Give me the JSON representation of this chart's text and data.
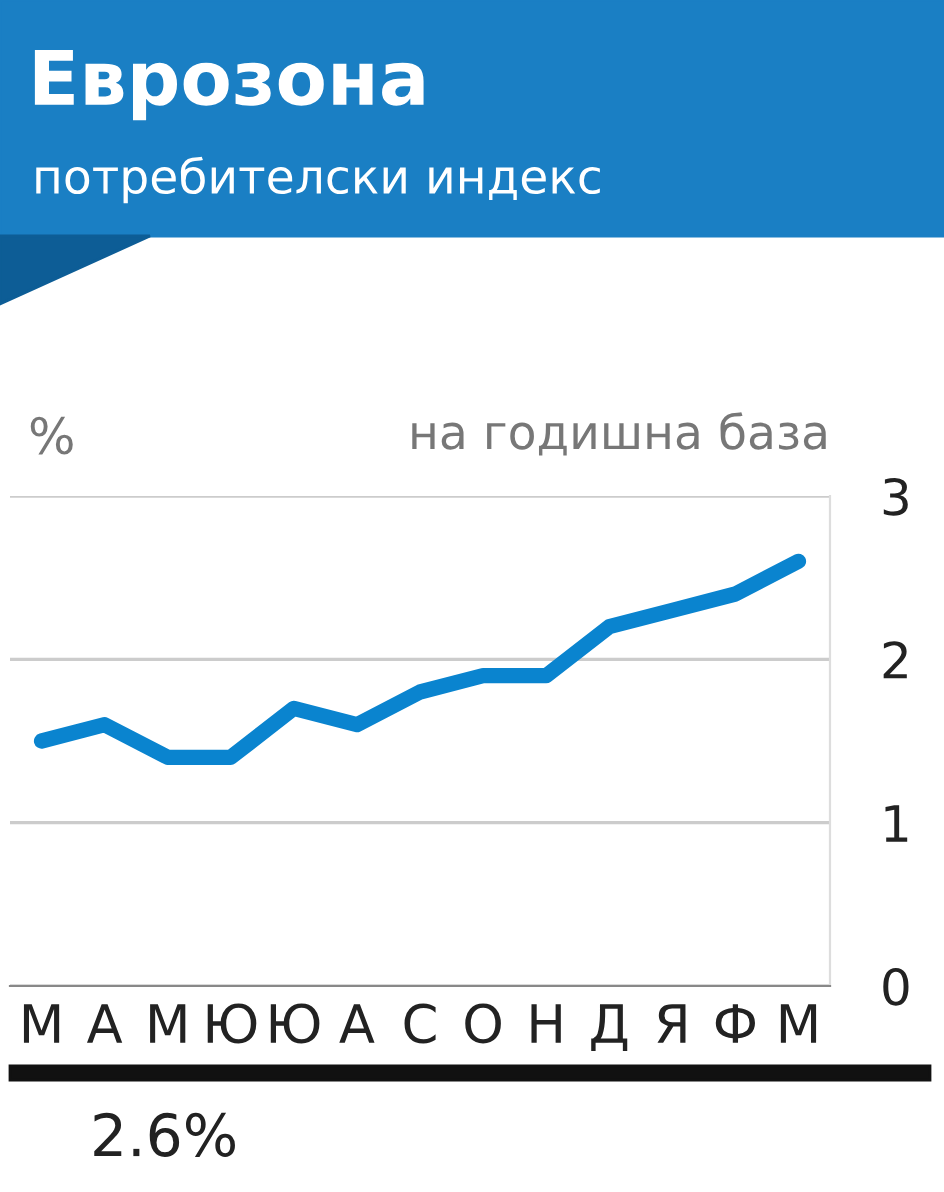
{
  "chart_data": {
    "type": "line",
    "title": "Еврозона",
    "subtitle": "потребителски индекс",
    "ylabel": "%",
    "annotations": [
      "на годишна база",
      "2.6%"
    ],
    "categories": [
      "М",
      "А",
      "М",
      "Ю",
      "Ю",
      "А",
      "С",
      "О",
      "Н",
      "Д",
      "Я",
      "Ф",
      "М"
    ],
    "series": [
      {
        "color": "#0a84cf",
        "values": [
          1.5,
          1.6,
          1.4,
          1.4,
          1.7,
          1.6,
          1.8,
          1.9,
          1.9,
          2.2,
          2.3,
          2.4,
          2.6
        ]
      }
    ],
    "ylim": [
      0,
      3
    ],
    "yticks": [
      0,
      1,
      2,
      3
    ],
    "grid": "y",
    "legend": false,
    "marker": "none",
    "line_style": "solid"
  }
}
